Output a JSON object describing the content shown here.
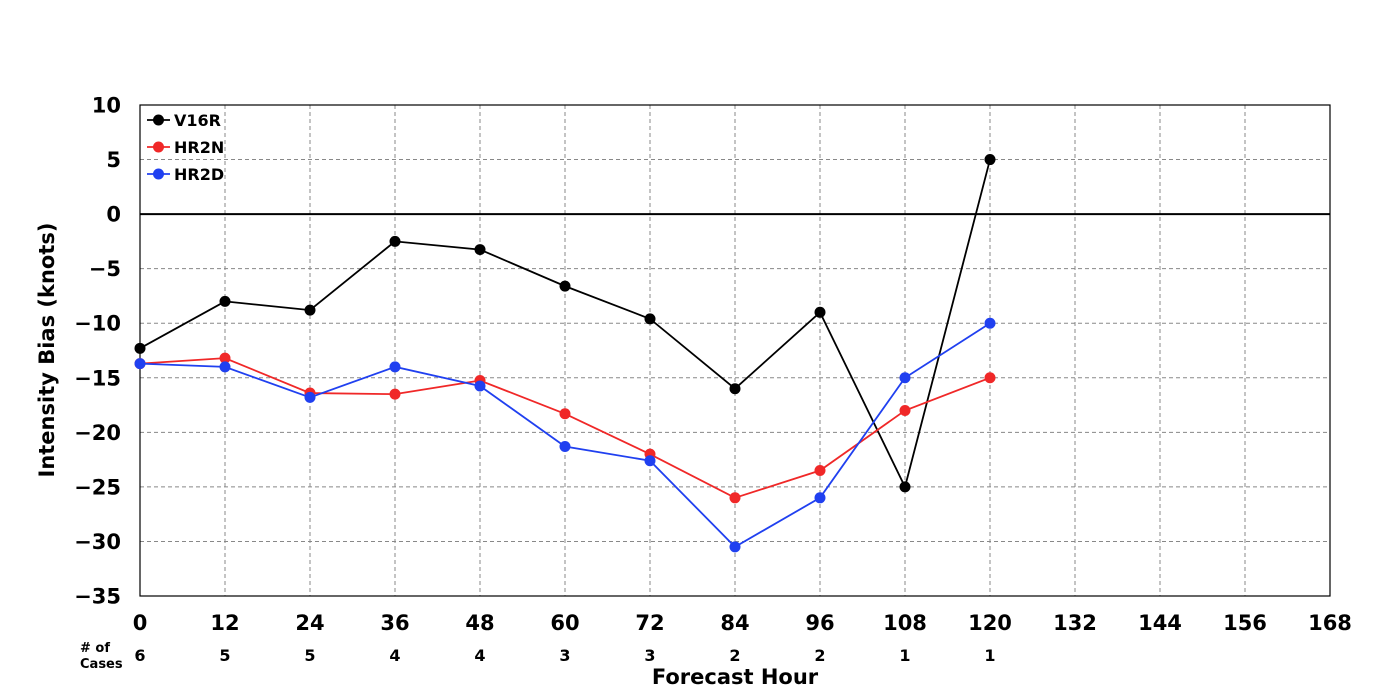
{
  "chart_data": {
    "type": "line",
    "x": [
      0,
      12,
      24,
      36,
      48,
      60,
      72,
      84,
      96,
      108,
      120
    ],
    "xlabel": "Forecast Hour",
    "ylabel": "Intensity Bias (knots)",
    "xlim": [
      0,
      168
    ],
    "ylim": [
      -35,
      10
    ],
    "xticks": [
      0,
      12,
      24,
      36,
      48,
      60,
      72,
      84,
      96,
      108,
      120,
      132,
      144,
      156,
      168
    ],
    "yticks": [
      10,
      5,
      0,
      -5,
      -10,
      -15,
      -20,
      -25,
      -30,
      -35
    ],
    "xtick_labels": [
      "0",
      "12",
      "24",
      "36",
      "48",
      "60",
      "72",
      "84",
      "96",
      "108",
      "120",
      "132",
      "144",
      "156",
      "168"
    ],
    "ytick_labels": [
      "10",
      "5",
      "0",
      "−5",
      "−10",
      "−15",
      "−20",
      "−25",
      "−30",
      "−35"
    ],
    "grid": true,
    "zero_line": true,
    "legend_position": "top-left",
    "series": [
      {
        "name": "V16R",
        "color": "#000000",
        "values": [
          -12.3,
          -8.0,
          -8.8,
          -2.5,
          -3.25,
          -6.6,
          -9.6,
          -16.0,
          -9.0,
          -25.0,
          5.0
        ]
      },
      {
        "name": "HR2N",
        "color": "#f02828",
        "values": [
          -13.7,
          -13.2,
          -16.4,
          -16.5,
          -15.25,
          -18.3,
          -22.0,
          -26.0,
          -23.5,
          -18.0,
          -15.0
        ]
      },
      {
        "name": "HR2D",
        "color": "#2040f0",
        "values": [
          -13.7,
          -14.0,
          -16.8,
          -14.0,
          -15.75,
          -21.3,
          -22.6,
          -30.5,
          -26.0,
          -15.0,
          -10.0
        ]
      }
    ],
    "cases": {
      "title_line1": "# of",
      "title_line2": "Cases",
      "counts": [
        "6",
        "5",
        "5",
        "4",
        "4",
        "3",
        "3",
        "2",
        "2",
        "1",
        "1"
      ]
    }
  }
}
